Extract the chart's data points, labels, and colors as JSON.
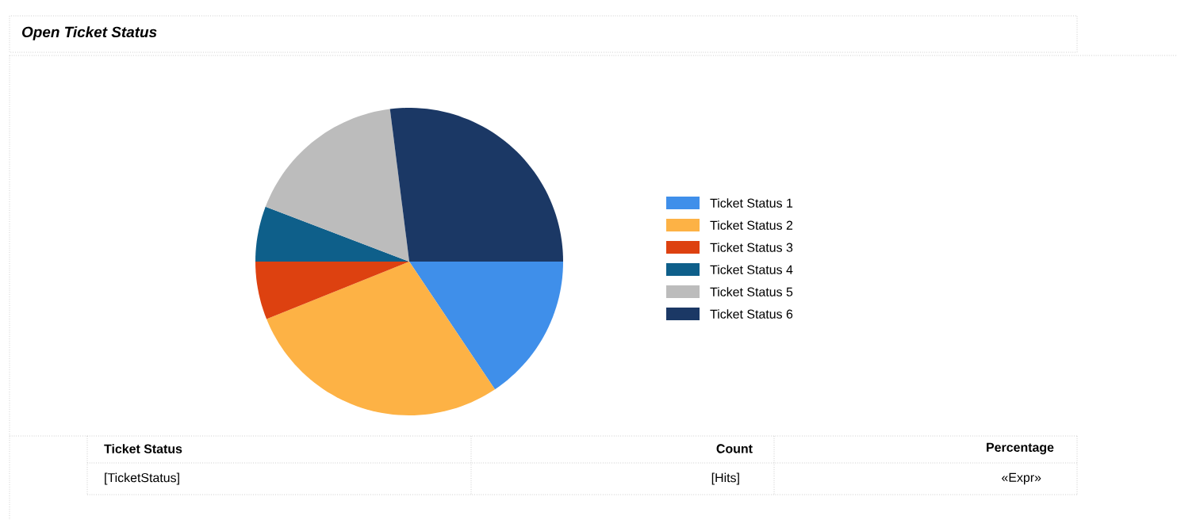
{
  "chart_data": {
    "type": "pie",
    "title": "Open Ticket Status",
    "categories": [
      "Ticket Status 1",
      "Ticket Status 2",
      "Ticket Status 3",
      "Ticket Status 4",
      "Ticket Status 5",
      "Ticket Status 6"
    ],
    "values": [
      15.6,
      28.3,
      6.1,
      5.8,
      17.2,
      27.0
    ],
    "colors": [
      "#3f8fea",
      "#fdb245",
      "#dd4110",
      "#0e5f8a",
      "#bcbcbc",
      "#1b3865"
    ],
    "legend": "right",
    "annotations": [
      "Ticket Status",
      "Count",
      "Percentage",
      "[TicketStatus]",
      "[Hits]",
      "«Expr»"
    ]
  }
}
